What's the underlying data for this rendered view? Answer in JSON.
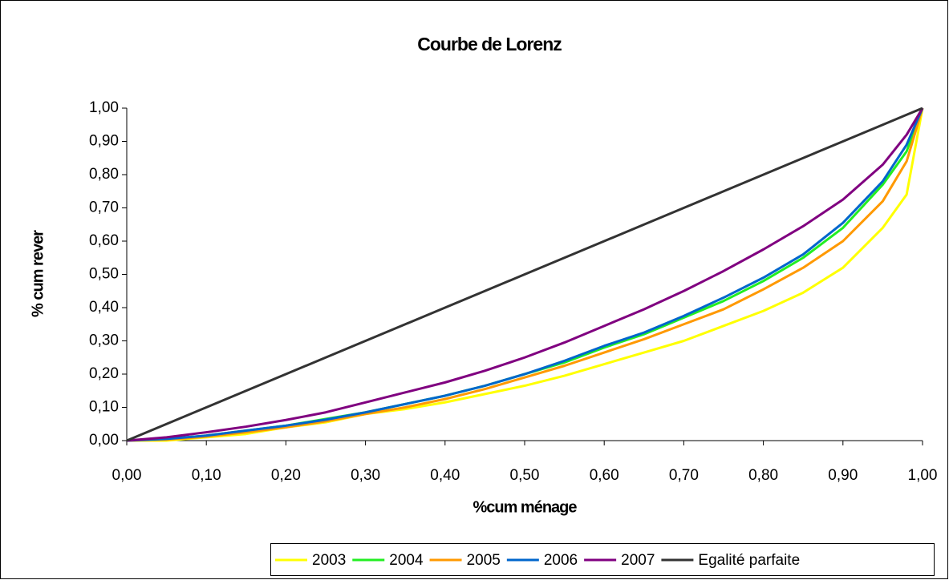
{
  "chart_data": {
    "type": "line",
    "title": "Courbe de Lorenz",
    "x_label": "%cum ménage",
    "y_label": "% cum rever",
    "x": [
      0,
      0.05,
      0.1,
      0.15,
      0.2,
      0.25,
      0.3,
      0.35,
      0.4,
      0.45,
      0.5,
      0.55,
      0.6,
      0.65,
      0.7,
      0.75,
      0.8,
      0.85,
      0.9,
      0.95,
      0.98,
      1.0
    ],
    "series": [
      {
        "name": "2003",
        "color": "#ffff00",
        "values": [
          0,
          0,
          0.01,
          0.02,
          0.04,
          0.055,
          0.08,
          0.095,
          0.115,
          0.14,
          0.165,
          0.195,
          0.23,
          0.265,
          0.3,
          0.345,
          0.39,
          0.445,
          0.52,
          0.64,
          0.74,
          1.0
        ]
      },
      {
        "name": "2004",
        "color": "#22ee22",
        "values": [
          0,
          0.005,
          0.015,
          0.03,
          0.045,
          0.065,
          0.085,
          0.11,
          0.135,
          0.165,
          0.2,
          0.235,
          0.28,
          0.32,
          0.37,
          0.42,
          0.48,
          0.55,
          0.64,
          0.77,
          0.87,
          1.0
        ]
      },
      {
        "name": "2005",
        "color": "#ff9900",
        "values": [
          0,
          0.003,
          0.012,
          0.025,
          0.04,
          0.058,
          0.08,
          0.1,
          0.125,
          0.155,
          0.19,
          0.225,
          0.265,
          0.305,
          0.35,
          0.395,
          0.455,
          0.52,
          0.6,
          0.72,
          0.84,
          1.0
        ]
      },
      {
        "name": "2006",
        "color": "#0066cc",
        "values": [
          0,
          0.005,
          0.015,
          0.03,
          0.045,
          0.063,
          0.085,
          0.11,
          0.135,
          0.165,
          0.2,
          0.24,
          0.285,
          0.325,
          0.375,
          0.43,
          0.49,
          0.56,
          0.655,
          0.78,
          0.89,
          1.0
        ]
      },
      {
        "name": "2007",
        "color": "#800080",
        "values": [
          0,
          0.01,
          0.025,
          0.042,
          0.062,
          0.085,
          0.115,
          0.145,
          0.175,
          0.21,
          0.25,
          0.295,
          0.345,
          0.395,
          0.45,
          0.51,
          0.575,
          0.645,
          0.725,
          0.83,
          0.92,
          1.0
        ]
      },
      {
        "name": "Egalité parfaite",
        "color": "#333333",
        "values": [
          0,
          0.05,
          0.1,
          0.15,
          0.2,
          0.25,
          0.3,
          0.35,
          0.4,
          0.45,
          0.5,
          0.55,
          0.6,
          0.65,
          0.7,
          0.75,
          0.8,
          0.85,
          0.9,
          0.95,
          0.98,
          1.0
        ]
      }
    ],
    "xlim": [
      0,
      1
    ],
    "ylim": [
      0,
      1
    ],
    "xticks": [
      {
        "value": 0,
        "label": "0,00"
      },
      {
        "value": 0.1,
        "label": "0,10"
      },
      {
        "value": 0.2,
        "label": "0,20"
      },
      {
        "value": 0.3,
        "label": "0,30"
      },
      {
        "value": 0.4,
        "label": "0,40"
      },
      {
        "value": 0.5,
        "label": "0,50"
      },
      {
        "value": 0.6,
        "label": "0,60"
      },
      {
        "value": 0.7,
        "label": "0,70"
      },
      {
        "value": 0.8,
        "label": "0,80"
      },
      {
        "value": 0.9,
        "label": "0,90"
      },
      {
        "value": 1,
        "label": "1,00"
      }
    ],
    "yticks": [
      {
        "value": 0,
        "label": "0,00"
      },
      {
        "value": 0.1,
        "label": "0,10"
      },
      {
        "value": 0.2,
        "label": "0,20"
      },
      {
        "value": 0.3,
        "label": "0,30"
      },
      {
        "value": 0.4,
        "label": "0,40"
      },
      {
        "value": 0.5,
        "label": "0,50"
      },
      {
        "value": 0.6,
        "label": "0,60"
      },
      {
        "value": 0.7,
        "label": "0,70"
      },
      {
        "value": 0.8,
        "label": "0,80"
      },
      {
        "value": 0.9,
        "label": "0,90"
      },
      {
        "value": 1,
        "label": "1,00"
      }
    ],
    "grid": false,
    "legend": "bottom"
  }
}
